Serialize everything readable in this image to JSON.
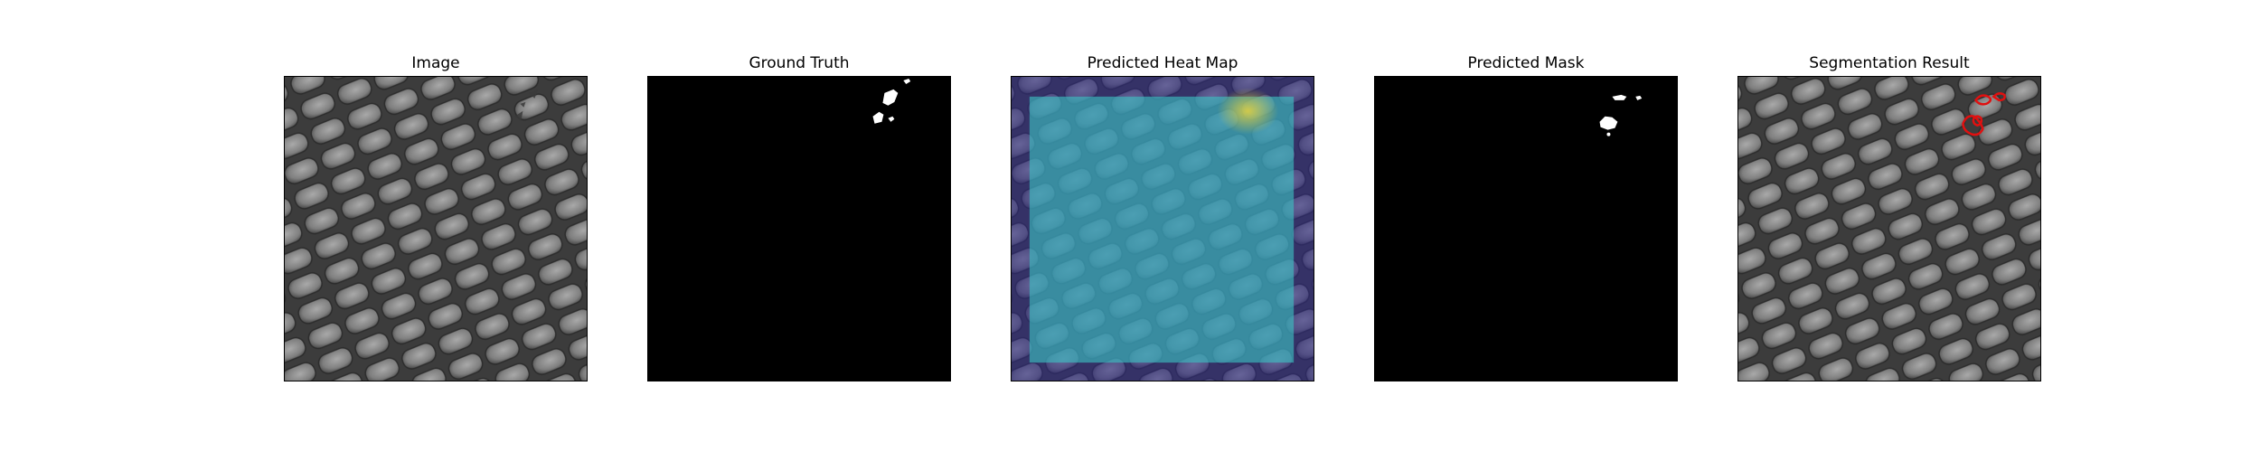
{
  "figure": {
    "panels": [
      {
        "id": "image",
        "title": "Image"
      },
      {
        "id": "ground_truth",
        "title": "Ground Truth"
      },
      {
        "id": "heat_map",
        "title": "Predicted Heat Map"
      },
      {
        "id": "predicted_mask",
        "title": "Predicted Mask"
      },
      {
        "id": "segmentation",
        "title": "Segmentation Result"
      }
    ],
    "colors": {
      "background": "#ffffff",
      "mask_bg": "#000000",
      "mask_fg": "#ffffff",
      "contour": "#e01010",
      "heat_low": "#2f2a8a",
      "heat_mid": "#3bc4c4",
      "heat_high": "#e8d23a"
    }
  }
}
